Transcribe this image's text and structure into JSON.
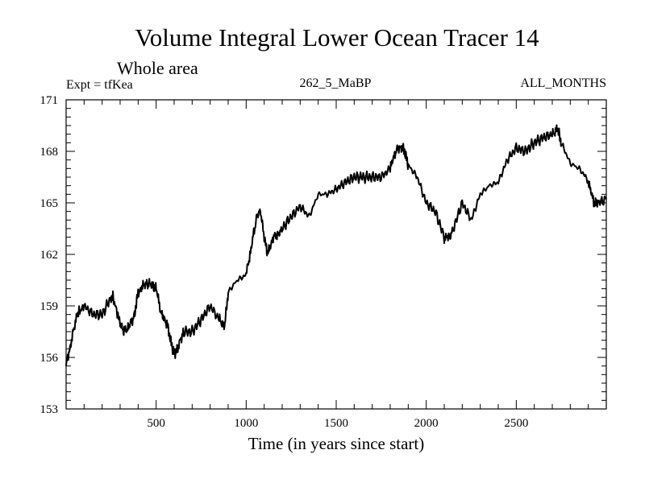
{
  "chart_data": {
    "type": "line",
    "title": "Volume Integral Lower Ocean Tracer 14",
    "subtitle": "Whole area",
    "expt_label": "Expt = tfKea",
    "run_label": "262_5_MaBP",
    "months_label": "ALL_MONTHS",
    "xlabel": "Time (in years since start)",
    "ylabel": "",
    "xlim": [
      0,
      3000
    ],
    "ylim": [
      153,
      171
    ],
    "x_ticks": [
      500,
      1000,
      1500,
      2000,
      2500
    ],
    "y_ticks": [
      153,
      156,
      159,
      162,
      165,
      168,
      171
    ],
    "grid": false,
    "series": [
      {
        "color": "#000000",
        "x": [
          0,
          30,
          60,
          100,
          150,
          200,
          250,
          260,
          300,
          320,
          350,
          380,
          400,
          430,
          450,
          480,
          500,
          530,
          560,
          580,
          600,
          620,
          650,
          700,
          750,
          800,
          850,
          880,
          900,
          950,
          1000,
          1030,
          1060,
          1080,
          1100,
          1120,
          1150,
          1180,
          1200,
          1250,
          1300,
          1350,
          1400,
          1450,
          1500,
          1550,
          1600,
          1650,
          1700,
          1750,
          1800,
          1830,
          1860,
          1880,
          1900,
          1950,
          2000,
          2050,
          2100,
          2130,
          2150,
          2200,
          2250,
          2300,
          2350,
          2400,
          2450,
          2500,
          2550,
          2600,
          2650,
          2700,
          2730,
          2750,
          2800,
          2850,
          2900,
          2930,
          2950,
          3000
        ],
        "values": [
          155.5,
          157.0,
          158.5,
          159.0,
          158.5,
          158.5,
          159.5,
          159.5,
          158.0,
          157.5,
          157.8,
          158.5,
          159.8,
          160.2,
          160.3,
          160.2,
          160.0,
          158.5,
          158.0,
          157.0,
          156.2,
          156.5,
          157.5,
          157.5,
          158.2,
          159.0,
          158.2,
          157.8,
          159.8,
          160.5,
          160.8,
          162.5,
          164.3,
          164.5,
          163.0,
          162.0,
          163.0,
          163.2,
          163.5,
          164.2,
          164.8,
          164.2,
          165.5,
          165.5,
          165.8,
          166.2,
          166.5,
          166.5,
          166.5,
          166.5,
          167.0,
          168.0,
          168.3,
          168.0,
          167.2,
          166.5,
          165.0,
          164.5,
          163.0,
          163.0,
          163.5,
          165.0,
          164.0,
          165.5,
          166.0,
          166.2,
          167.5,
          168.2,
          168.0,
          168.5,
          168.8,
          169.0,
          169.3,
          168.5,
          167.3,
          167.0,
          166.3,
          165.0,
          165.0,
          165.2
        ]
      }
    ]
  }
}
